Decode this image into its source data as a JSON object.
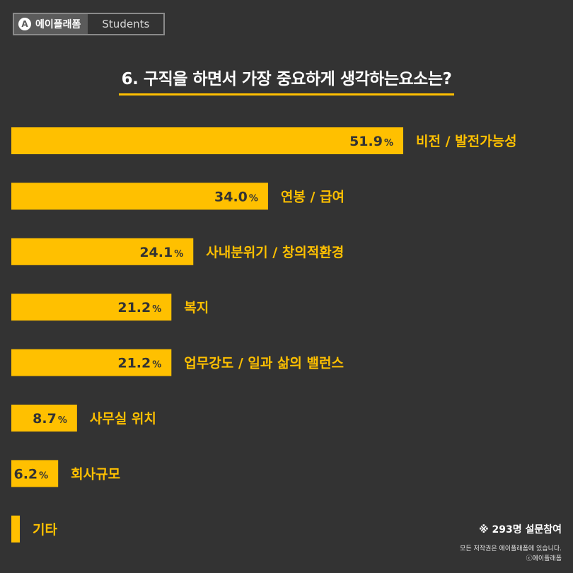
{
  "brand": {
    "logo_letter": "A",
    "name": "에이플래폼",
    "tag": "Students"
  },
  "chart_data": {
    "type": "bar",
    "orientation": "horizontal",
    "title": "6. 구직을 하면서 가장 중요하게 생각하는요소는?",
    "xlim": [
      0,
      51.9
    ],
    "grid": false,
    "categories": [
      "비전 / 발전가능성",
      "연봉 / 급여",
      "사내분위기 / 창의적환경",
      "복지",
      "업무강도 / 일과 삶의 밸런스",
      "사무실 위치",
      "회사규모",
      "기타"
    ],
    "values": [
      51.9,
      34.0,
      24.1,
      21.2,
      21.2,
      8.7,
      6.2,
      1.0
    ],
    "value_labels": [
      "51.9",
      "34.0",
      "24.1",
      "21.2",
      "21.2",
      "8.7",
      "6.2",
      ""
    ],
    "unit": "%",
    "bar_color": "#ffc000",
    "label_color": "#ffc000",
    "value_color": "#333333"
  },
  "note": "※ 293명 설문참여",
  "copyright_line1": "모든 저작권은 에이플래폼에 있습니다.",
  "copyright_line2": "ⓒ에이플래폼"
}
